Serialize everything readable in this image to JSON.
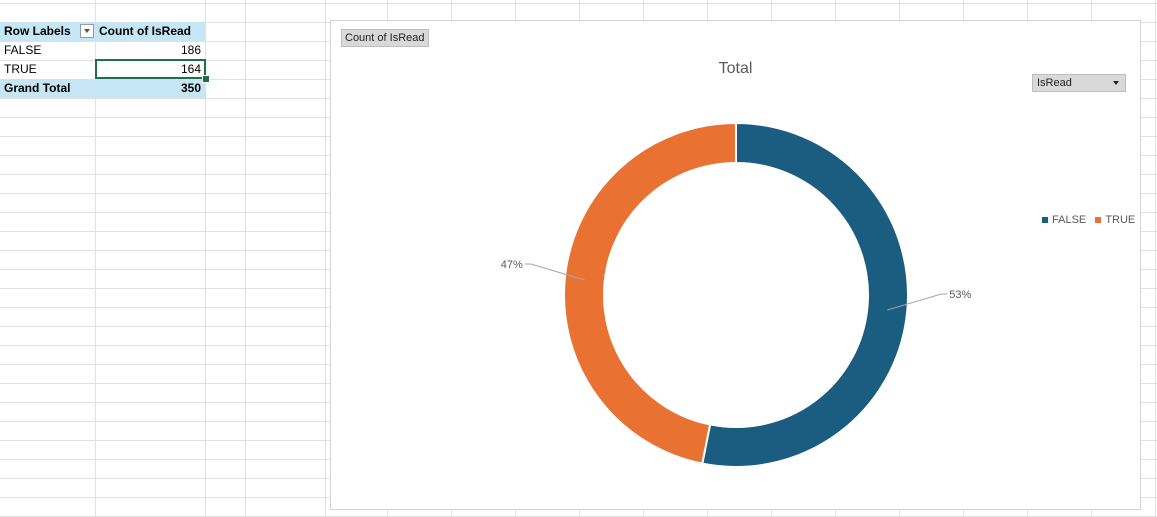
{
  "pivot": {
    "headers": {
      "row_labels": "Row Labels",
      "count_col": "Count of IsRead"
    },
    "rows": [
      {
        "label": "FALSE",
        "value": "186"
      },
      {
        "label": "TRUE",
        "value": "164"
      }
    ],
    "total": {
      "label": "Grand Total",
      "value": "350"
    }
  },
  "chart": {
    "field_button": "Count of IsRead",
    "title": "Total",
    "filter_dropdown": "IsRead",
    "legend": [
      {
        "name": "FALSE",
        "color": "#1b5d80"
      },
      {
        "name": "TRUE",
        "color": "#e97132"
      }
    ],
    "data_labels": {
      "false_pct": "53%",
      "true_pct": "47%"
    }
  },
  "chart_data": {
    "type": "pie",
    "title": "Total",
    "categories": [
      "FALSE",
      "TRUE"
    ],
    "values": [
      186,
      164
    ],
    "percent_labels": [
      "53%",
      "47%"
    ],
    "colors": [
      "#1b5d80",
      "#e97132"
    ],
    "legend_position": "right",
    "style": "doughnut"
  }
}
